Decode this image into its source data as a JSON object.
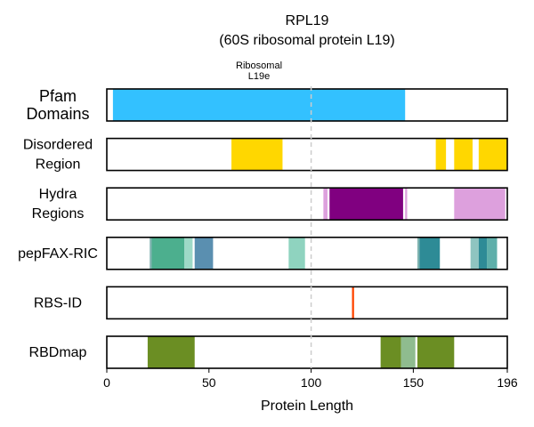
{
  "chart_data": {
    "type": "feature-track",
    "title": "RPL19",
    "subtitle": "(60S ribosomal protein L19)",
    "xlabel": "Protein Length",
    "xlim": [
      0,
      196
    ],
    "xticks": [
      0,
      50,
      100,
      150,
      196
    ],
    "reference_line": {
      "x": 100,
      "color": "#cccccc",
      "style": "dashed"
    },
    "tracks": [
      {
        "name": "Pfam\nDomains",
        "segments": [
          {
            "start": 3,
            "end": 146,
            "color": "#33C1FF",
            "label": "Ribosomal\nL19e"
          }
        ]
      },
      {
        "name": "Disordered\nRegion",
        "segments": [
          {
            "start": 61,
            "end": 86,
            "color": "#FFD700"
          },
          {
            "start": 161,
            "end": 166,
            "color": "#FFD700"
          },
          {
            "start": 170,
            "end": 179,
            "color": "#FFD700"
          },
          {
            "start": 182,
            "end": 196,
            "color": "#FFD700"
          }
        ]
      },
      {
        "name": "Hydra\nRegions",
        "segments": [
          {
            "start": 106,
            "end": 108,
            "color": "#DDA0DD"
          },
          {
            "start": 109,
            "end": 145,
            "color": "#800080"
          },
          {
            "start": 146,
            "end": 147,
            "color": "#DDA0DD"
          },
          {
            "start": 170,
            "end": 195,
            "color": "#DDA0DD"
          }
        ]
      },
      {
        "name": "pepFAX-RIC",
        "segments": [
          {
            "start": 21,
            "end": 22,
            "color": "#7FB3B0"
          },
          {
            "start": 22,
            "end": 38,
            "color": "#4CAF8E"
          },
          {
            "start": 38,
            "end": 42,
            "color": "#9ED9C7"
          },
          {
            "start": 43,
            "end": 52,
            "color": "#5A8FB0"
          },
          {
            "start": 89,
            "end": 97,
            "color": "#8FD3BF"
          },
          {
            "start": 152,
            "end": 153,
            "color": "#7FB3B0"
          },
          {
            "start": 153,
            "end": 163,
            "color": "#2E8B96"
          },
          {
            "start": 178,
            "end": 182,
            "color": "#8FC4C0"
          },
          {
            "start": 182,
            "end": 186,
            "color": "#2E8B96"
          },
          {
            "start": 186,
            "end": 191,
            "color": "#5FAFAA"
          }
        ]
      },
      {
        "name": "RBS-ID",
        "segments": [
          {
            "start": 120,
            "end": 121,
            "color": "#FF4500"
          }
        ]
      },
      {
        "name": "RBDmap",
        "segments": [
          {
            "start": 20,
            "end": 43,
            "color": "#6B8E23"
          },
          {
            "start": 134,
            "end": 144,
            "color": "#6B8E23"
          },
          {
            "start": 144,
            "end": 151,
            "color": "#8FBC8F"
          },
          {
            "start": 152,
            "end": 170,
            "color": "#6B8E23"
          }
        ]
      }
    ]
  }
}
